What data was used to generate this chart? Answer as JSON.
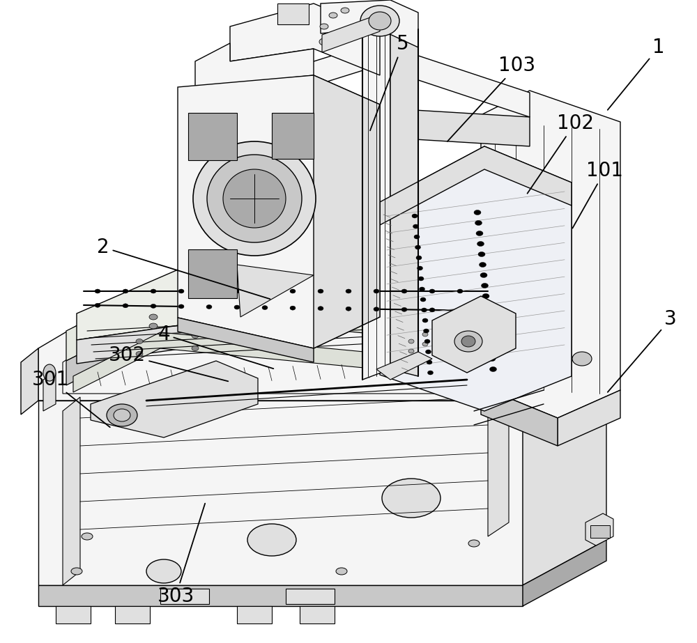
{
  "figsize": [
    10.0,
    9.23
  ],
  "dpi": 100,
  "background_color": "#ffffff",
  "label_fontsize": 20,
  "text_color": "#000000",
  "labels_info": [
    [
      "1",
      945,
      68,
      870,
      160
    ],
    [
      "2",
      148,
      355,
      390,
      430
    ],
    [
      "3",
      962,
      458,
      870,
      565
    ],
    [
      "4",
      235,
      480,
      395,
      530
    ],
    [
      "5",
      578,
      63,
      530,
      190
    ],
    [
      "101",
      868,
      245,
      820,
      330
    ],
    [
      "102",
      825,
      177,
      755,
      280
    ],
    [
      "103",
      742,
      94,
      640,
      205
    ],
    [
      "301",
      72,
      545,
      160,
      615
    ],
    [
      "302",
      182,
      510,
      330,
      548
    ],
    [
      "303",
      252,
      856,
      295,
      720
    ]
  ],
  "c_white": "#ffffff",
  "c_light": "#f5f5f5",
  "c_mid": "#e0e0e0",
  "c_dark": "#c8c8c8",
  "c_darker": "#aaaaaa",
  "c_edge": "#000000",
  "lw": 1.0
}
